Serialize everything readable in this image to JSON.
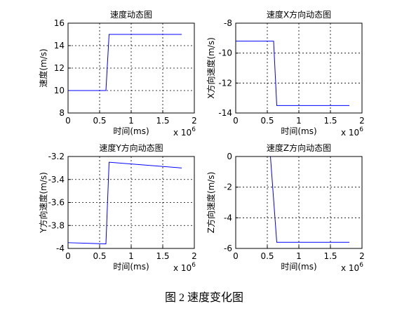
{
  "chart_data": [
    {
      "type": "line",
      "title": "速度动态图",
      "xlabel": "时间(ms)",
      "ylabel": "速度(m/s)",
      "xscale_base": "x 10",
      "xscale_exp": "6",
      "x": [
        0,
        0.6,
        0.65,
        1.8
      ],
      "series": [
        {
          "color": "#0000ff",
          "values": [
            10,
            10,
            15,
            15
          ]
        }
      ],
      "xlim": [
        0,
        2
      ],
      "xticks": [
        0,
        0.5,
        1,
        1.5,
        2
      ],
      "ylim": [
        8,
        16
      ],
      "yticks": [
        8,
        10,
        12,
        14,
        16
      ],
      "grid": true
    },
    {
      "type": "line",
      "title": "速度X方向动态图",
      "xlabel": "时间(ms)",
      "ylabel": "X方向速度(m/s)",
      "xscale_base": "x 10",
      "xscale_exp": "6",
      "x": [
        0,
        0.6,
        0.65,
        1.8
      ],
      "series": [
        {
          "color": "#0000ff",
          "values": [
            -9.2,
            -9.2,
            -13.5,
            -13.5
          ]
        }
      ],
      "xlim": [
        0,
        2
      ],
      "xticks": [
        0,
        0.5,
        1,
        1.5,
        2
      ],
      "ylim": [
        -14,
        -8
      ],
      "yticks": [
        -14,
        -12,
        -10,
        -8
      ],
      "grid": true
    },
    {
      "type": "line",
      "title": "速度Y方向动态图",
      "xlabel": "时间(ms)",
      "ylabel": "Y方向速度(m/s)",
      "xscale_base": "x 10",
      "xscale_exp": "6",
      "x": [
        0,
        0.6,
        0.65,
        1.8
      ],
      "series": [
        {
          "color": "#0000ff",
          "values": [
            -3.95,
            -3.96,
            -3.25,
            -3.3
          ]
        }
      ],
      "xlim": [
        0,
        2
      ],
      "xticks": [
        0,
        0.5,
        1,
        1.5,
        2
      ],
      "ylim": [
        -4,
        -3.2
      ],
      "yticks": [
        -4,
        -3.8,
        -3.6,
        -3.4,
        -3.2
      ],
      "grid": true
    },
    {
      "type": "line",
      "title": "速度Z方向动态图",
      "xlabel": "时间(ms)",
      "ylabel": "Z方向速度(m/s)",
      "xscale_base": "x 10",
      "xscale_exp": "6",
      "x": [
        0,
        0.55,
        0.65,
        1.8
      ],
      "series": [
        {
          "color": "#0000ff",
          "values": [
            0,
            0,
            -5.6,
            -5.6
          ]
        }
      ],
      "xlim": [
        0,
        2
      ],
      "xticks": [
        0,
        0.5,
        1,
        1.5,
        2
      ],
      "ylim": [
        -6,
        0
      ],
      "yticks": [
        -6,
        -4,
        -2,
        0
      ],
      "grid": true
    }
  ],
  "caption": "图 2  速度变化图"
}
